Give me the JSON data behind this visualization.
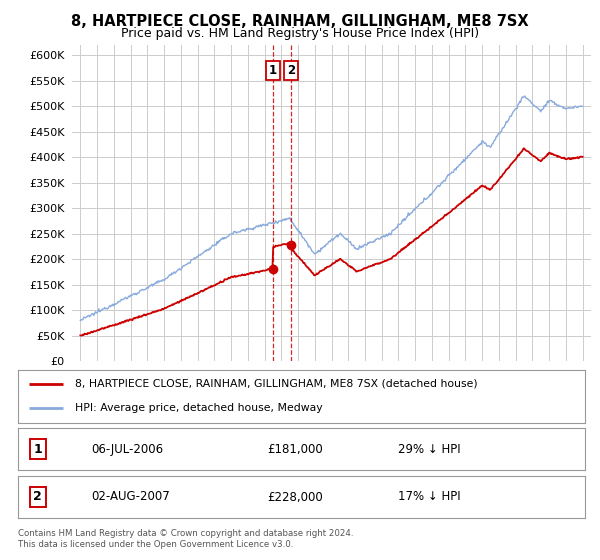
{
  "title": "8, HARTPIECE CLOSE, RAINHAM, GILLINGHAM, ME8 7SX",
  "subtitle": "Price paid vs. HM Land Registry's House Price Index (HPI)",
  "legend_line1": "8, HARTPIECE CLOSE, RAINHAM, GILLINGHAM, ME8 7SX (detached house)",
  "legend_line2": "HPI: Average price, detached house, Medway",
  "sale1_date": "06-JUL-2006",
  "sale1_price": "£181,000",
  "sale1_hpi": "29% ↓ HPI",
  "sale2_date": "02-AUG-2007",
  "sale2_price": "£228,000",
  "sale2_hpi": "17% ↓ HPI",
  "footer": "Contains HM Land Registry data © Crown copyright and database right 2024.\nThis data is licensed under the Open Government Licence v3.0.",
  "sale_color": "#cc0000",
  "hpi_color": "#88aadd",
  "marker_color": "#cc0000",
  "vline_color": "#cc0000",
  "grid_color": "#cccccc",
  "bg_color": "#ffffff",
  "sale_year1": 2006.51,
  "sale_year2": 2007.58,
  "sale_price1": 181000,
  "sale_price2": 228000,
  "ylim": [
    0,
    620000
  ],
  "yticks": [
    0,
    50000,
    100000,
    150000,
    200000,
    250000,
    300000,
    350000,
    400000,
    450000,
    500000,
    550000,
    600000
  ],
  "xmin": 1994.5,
  "xmax": 2025.5
}
